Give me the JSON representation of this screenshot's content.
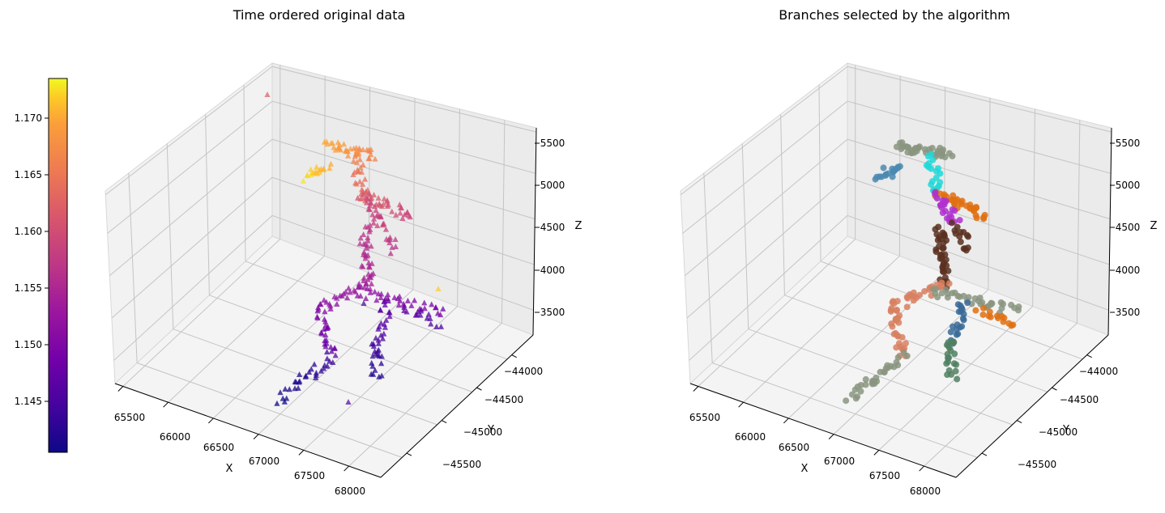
{
  "colorbar": {
    "ticks": [
      1.145,
      1.15,
      1.155,
      1.16,
      1.165,
      1.17
    ],
    "tick_labels": [
      "1.145",
      "1.150",
      "1.155",
      "1.160",
      "1.165",
      "1.170"
    ],
    "range": [
      1.1405,
      1.1735
    ],
    "colormap": "plasma"
  },
  "chart_data": [
    {
      "type": "scatter",
      "projection": "3d",
      "title": "Time ordered original data",
      "xlabel": "X",
      "ylabel": "Y",
      "zlabel": "Z",
      "marker": "triangle",
      "color_by": "time",
      "grid": true,
      "x_ticks": [
        "65500",
        "66000",
        "66500",
        "67000",
        "67500",
        "68000"
      ],
      "y_ticks": [
        "−44000",
        "−44500",
        "−45000",
        "−45500"
      ],
      "z_ticks": [
        "5500",
        "5000",
        "4500",
        "4000",
        "3500"
      ],
      "xlim": [
        65300,
        68100
      ],
      "ylim": [
        -45800,
        -43600
      ],
      "zlim": [
        3300,
        5650
      ]
    },
    {
      "type": "scatter",
      "projection": "3d",
      "title": "Branches selected by the algorithm",
      "xlabel": "X",
      "ylabel": "Y",
      "zlabel": "Z",
      "marker": "circle",
      "color_by": "branch",
      "grid": true,
      "branch_colors": [
        "#8a9580",
        "#4a8ab0",
        "#e07010",
        "#5a3020",
        "#b030d0",
        "#20d8d8",
        "#508060",
        "#ff2040",
        "#d88060",
        "#3a6a98",
        "#806060",
        "#9aa090"
      ],
      "x_ticks": [
        "65500",
        "66000",
        "66500",
        "67000",
        "67500",
        "68000"
      ],
      "y_ticks": [
        "−44000",
        "−44500",
        "−45000",
        "−45500"
      ],
      "z_ticks": [
        "5500",
        "5000",
        "4500",
        "4000",
        "3500"
      ],
      "xlim": [
        65300,
        68100
      ],
      "ylim": [
        -45800,
        -43600
      ],
      "zlim": [
        3300,
        5650
      ]
    }
  ]
}
